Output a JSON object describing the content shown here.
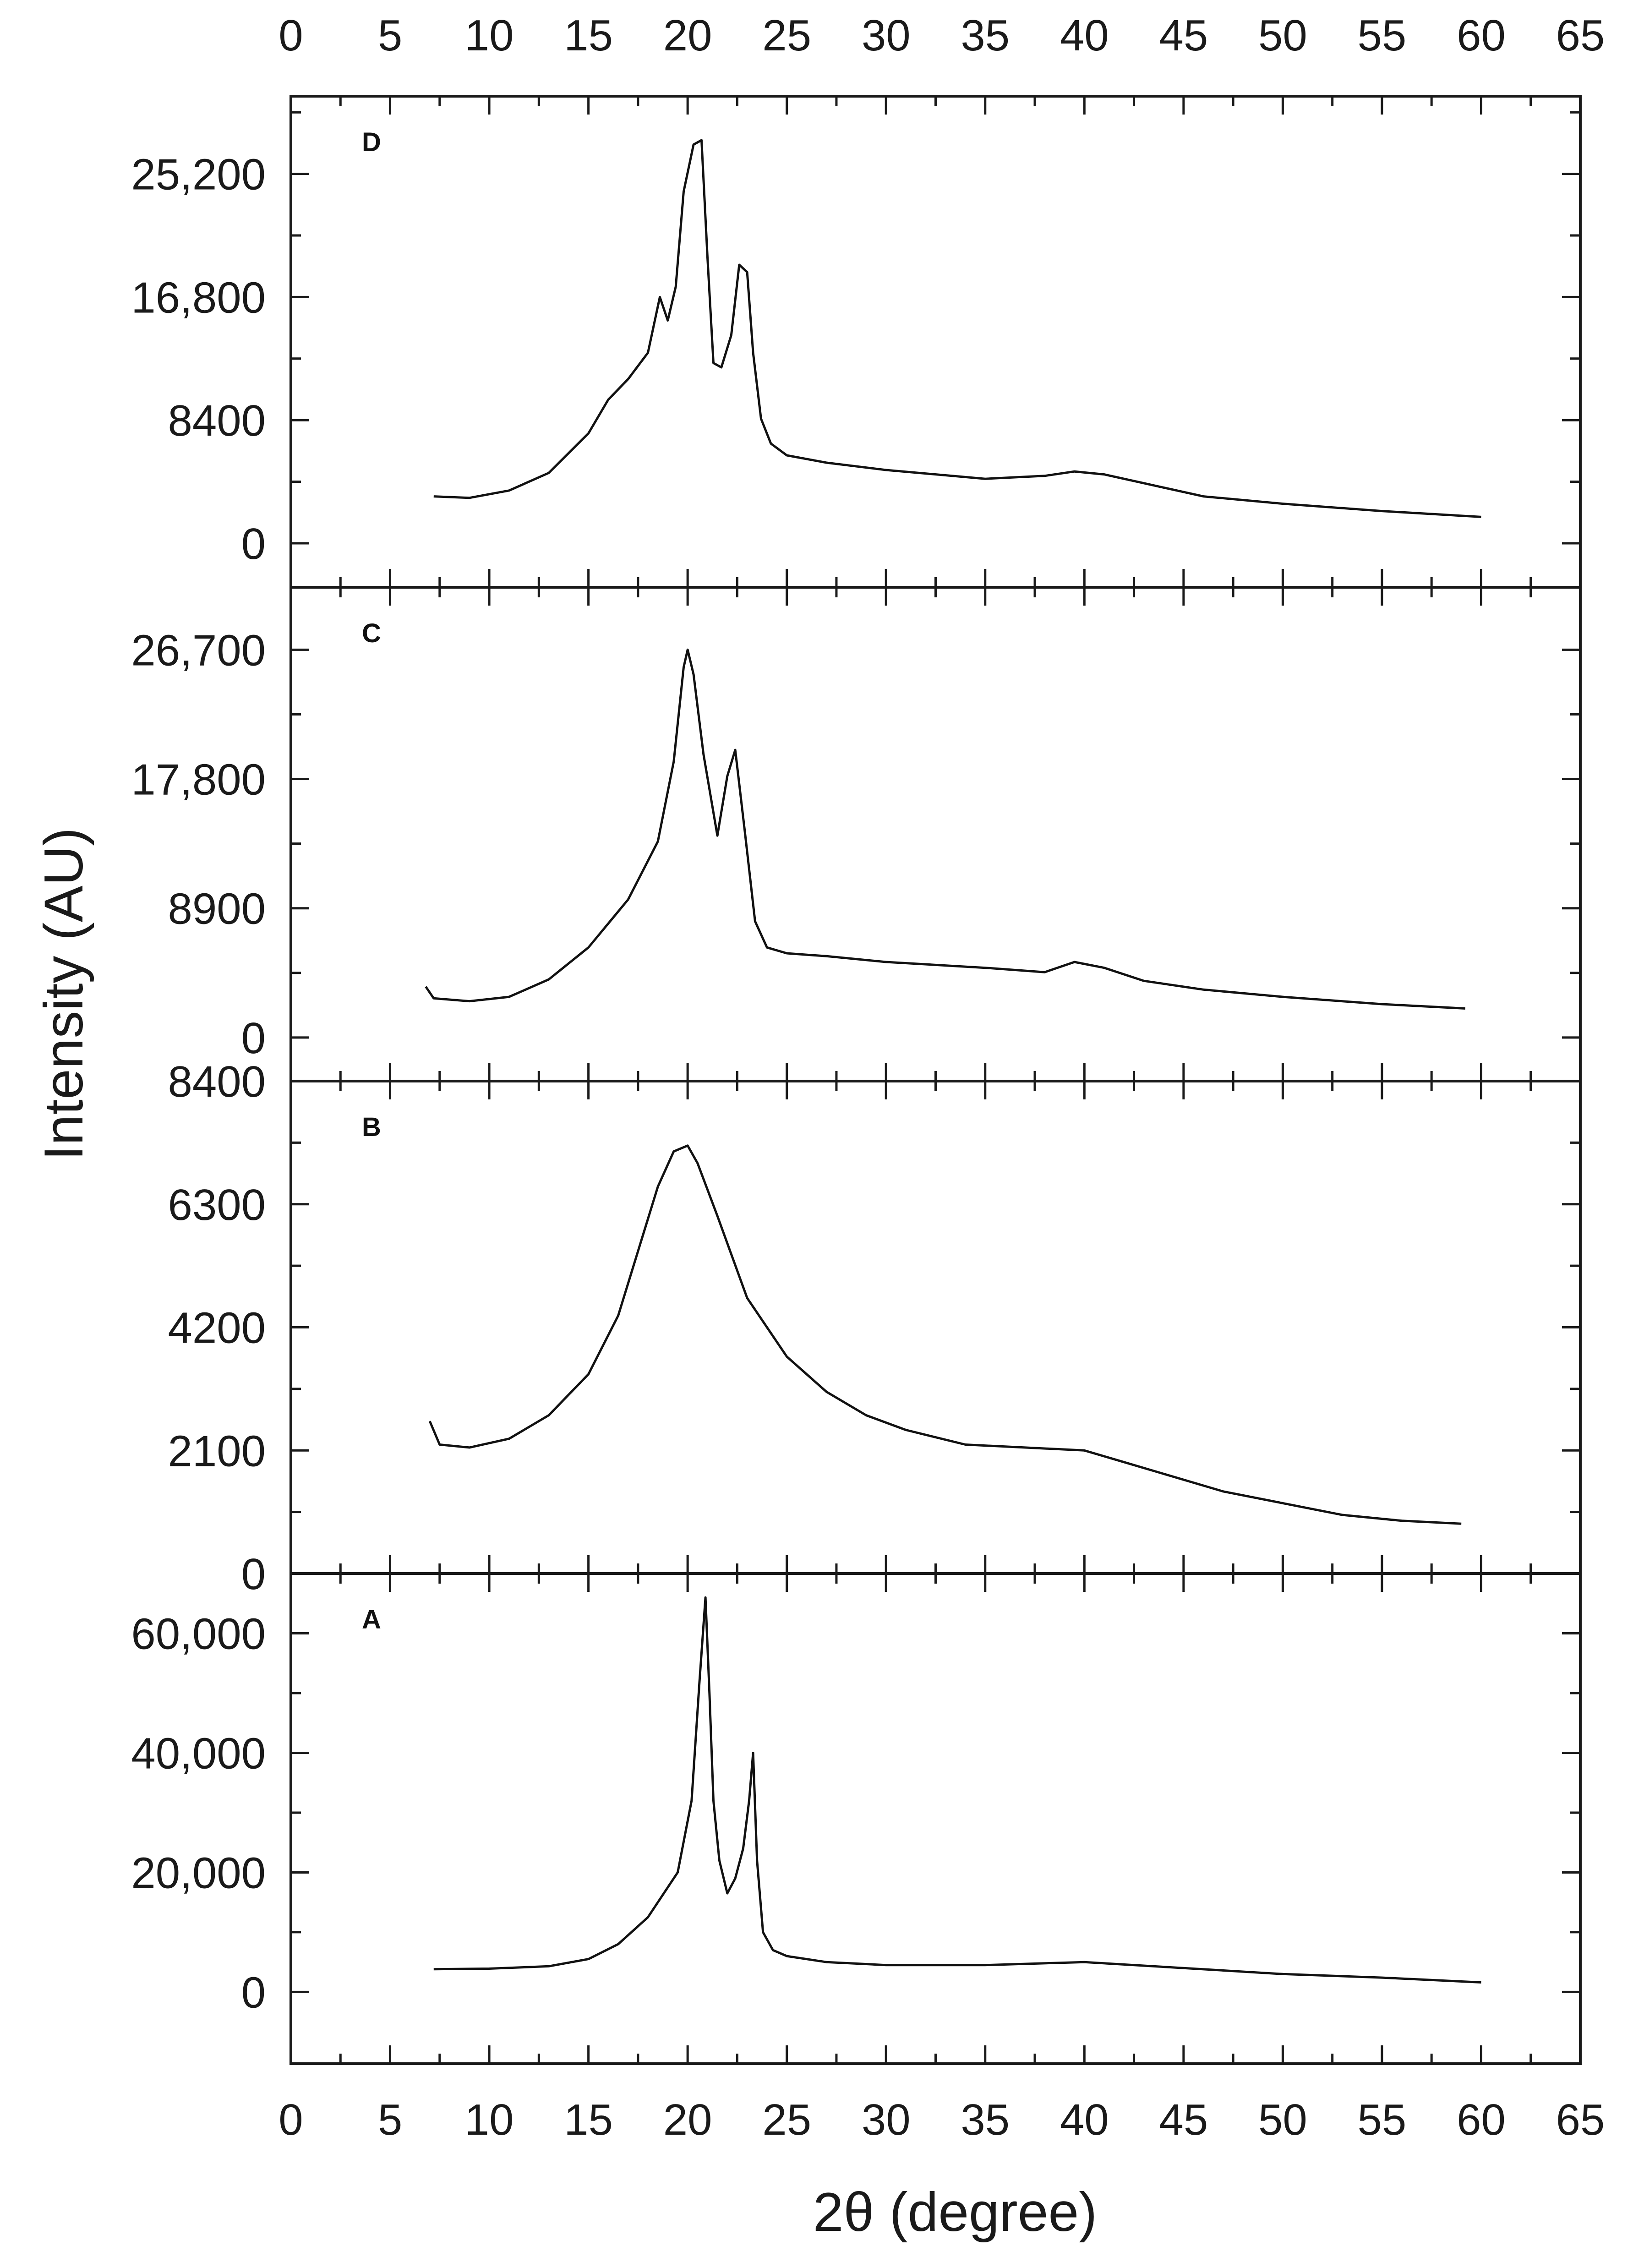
{
  "chart_data": {
    "type": "line",
    "xlabel": "2θ (degree)",
    "ylabel": "Intensity (AU)",
    "xlim": [
      0,
      65
    ],
    "xticks": [
      0,
      5,
      10,
      15,
      20,
      25,
      30,
      35,
      40,
      45,
      50,
      55,
      60,
      65
    ],
    "grid": false,
    "panels": [
      {
        "label": "D",
        "ylim": [
          -3000,
          30500
        ],
        "yticks": [
          0,
          8400,
          16800,
          25200
        ],
        "ytick_labels": [
          "0",
          "8400",
          "16,800",
          "25,200"
        ],
        "x": [
          7.2,
          9,
          11,
          13,
          15,
          16,
          17,
          18,
          18.6,
          19.0,
          19.4,
          19.8,
          20.3,
          20.7,
          21.0,
          21.3,
          21.7,
          22.2,
          22.6,
          23.0,
          23.3,
          23.7,
          24.2,
          25,
          27,
          30,
          35,
          38,
          39.5,
          41,
          43,
          46,
          50,
          55,
          60
        ],
        "y": [
          3200,
          3100,
          3600,
          4800,
          7500,
          9800,
          11200,
          13000,
          16800,
          15200,
          17500,
          24000,
          27200,
          27500,
          19500,
          12300,
          12000,
          14200,
          19000,
          18500,
          13000,
          8500,
          6800,
          6000,
          5500,
          5000,
          4400,
          4600,
          4900,
          4700,
          4100,
          3200,
          2700,
          2200,
          1800
        ]
      },
      {
        "label": "C",
        "ylim": [
          -3000,
          31000
        ],
        "yticks": [
          0,
          8900,
          17800,
          26700
        ],
        "ytick_labels": [
          "0",
          "8900",
          "17,800",
          "26,700"
        ],
        "x": [
          6.8,
          7.2,
          9,
          11,
          13,
          15,
          17,
          18.5,
          19.3,
          19.8,
          20.0,
          20.3,
          20.8,
          21.5,
          22.0,
          22.4,
          22.9,
          23.4,
          24,
          25,
          27,
          30,
          35,
          38,
          39.5,
          41,
          43,
          46,
          50,
          55,
          59.2
        ],
        "y": [
          3500,
          2700,
          2500,
          2800,
          4000,
          6200,
          9500,
          13500,
          19000,
          25500,
          26700,
          25000,
          19500,
          13900,
          18000,
          19800,
          14000,
          8000,
          6200,
          5800,
          5600,
          5200,
          4800,
          4500,
          5200,
          4800,
          3900,
          3300,
          2800,
          2300,
          2000
        ]
      },
      {
        "label": "B",
        "ylim": [
          0,
          8400
        ],
        "yticks": [
          0,
          2100,
          4200,
          6300,
          8400
        ],
        "ytick_labels": [
          "0",
          "2100",
          "4200",
          "6300",
          "8400"
        ],
        "x": [
          7.0,
          7.5,
          9,
          11,
          13,
          15,
          16.5,
          17.5,
          18.5,
          19.3,
          20.0,
          20.5,
          21.5,
          23,
          25,
          27,
          29,
          31,
          34,
          37,
          40,
          42,
          44,
          47,
          50,
          53,
          56,
          59
        ],
        "y": [
          2600,
          2200,
          2150,
          2300,
          2700,
          3400,
          4400,
          5500,
          6600,
          7200,
          7300,
          7000,
          6100,
          4700,
          3700,
          3100,
          2700,
          2450,
          2200,
          2150,
          2100,
          1900,
          1700,
          1400,
          1200,
          1000,
          900,
          850
        ]
      },
      {
        "label": "A",
        "ylim": [
          -12000,
          70000
        ],
        "yticks": [
          0,
          20000,
          40000,
          60000
        ],
        "ytick_labels": [
          "0",
          "20,000",
          "40,000",
          "60,000"
        ],
        "x": [
          7.2,
          10,
          13,
          15,
          16.5,
          18,
          19.5,
          20.2,
          20.6,
          20.9,
          21.1,
          21.3,
          21.6,
          22.0,
          22.4,
          22.8,
          23.1,
          23.3,
          23.5,
          23.8,
          24.3,
          25,
          27,
          30,
          35,
          40,
          45,
          50,
          55,
          60
        ],
        "y": [
          3800,
          3900,
          4300,
          5500,
          8000,
          12500,
          20000,
          32000,
          52000,
          66000,
          50000,
          32000,
          22000,
          16500,
          19000,
          24000,
          32000,
          40000,
          22000,
          10000,
          7000,
          6000,
          5000,
          4500,
          4500,
          5000,
          4000,
          3000,
          2400,
          1600
        ]
      }
    ]
  }
}
